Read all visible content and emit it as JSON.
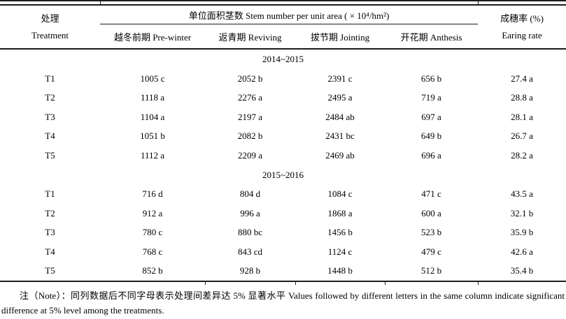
{
  "table": {
    "header": {
      "treatment_zh": "处理",
      "treatment_en": "Treatment",
      "span_title": "单位面积茎数 Stem number per unit area ( × 10⁴/hm²)",
      "sub_columns": [
        "越冬前期 Pre-winter",
        "返青期 Reviving",
        "拔节期 Jointing",
        "开花期 Anthesis"
      ],
      "earing_zh": "成穗率 (%)",
      "earing_en": "Earing rate"
    },
    "sections": [
      {
        "year": "2014~2015",
        "rows": [
          {
            "treatment": "T1",
            "values": [
              "1005 c",
              "2052 b",
              "2391 c",
              "656 b",
              "27.4 a"
            ]
          },
          {
            "treatment": "T2",
            "values": [
              "1118 a",
              "2276 a",
              "2495 a",
              "719 a",
              "28.8 a"
            ]
          },
          {
            "treatment": "T3",
            "values": [
              "1104 a",
              "2197 a",
              "2484 ab",
              "697 a",
              "28.1 a"
            ]
          },
          {
            "treatment": "T4",
            "values": [
              "1051 b",
              "2082 b",
              "2431 bc",
              "649 b",
              "26.7 a"
            ]
          },
          {
            "treatment": "T5",
            "values": [
              "1112 a",
              "2209 a",
              "2469 ab",
              "696 a",
              "28.2 a"
            ]
          }
        ]
      },
      {
        "year": "2015~2016",
        "rows": [
          {
            "treatment": "T1",
            "values": [
              "716 d",
              "804 d",
              "1084 c",
              "471 c",
              "43.5 a"
            ]
          },
          {
            "treatment": "T2",
            "values": [
              "912 a",
              "996 a",
              "1868 a",
              "600 a",
              "32.1 b"
            ]
          },
          {
            "treatment": "T3",
            "values": [
              "780 c",
              "880 bc",
              "1456 b",
              "523 b",
              "35.9 b"
            ]
          },
          {
            "treatment": "T4",
            "values": [
              "768 c",
              "843 cd",
              "1124 c",
              "479 c",
              "42.6 a"
            ]
          },
          {
            "treatment": "T5",
            "values": [
              "852 b",
              "928 b",
              "1448 b",
              "512 b",
              "35.4 b"
            ]
          }
        ]
      }
    ]
  },
  "note": {
    "text": "注（Note）：同列数据后不同字母表示处理间差异达 5% 显著水平 Values followed by different letters in the same column indicate significant difference at 5% level among the treatments."
  }
}
